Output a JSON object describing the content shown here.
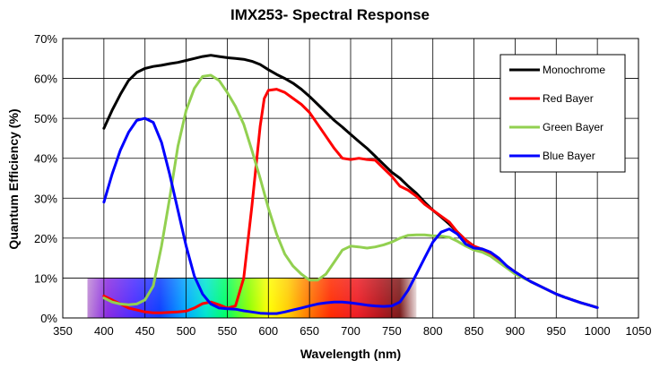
{
  "chart_data": {
    "type": "line",
    "title": "IMX253- Spectral Response",
    "xlabel": "Wavelength (nm)",
    "ylabel": "Quantum Efficiency (%)",
    "xlim": [
      350,
      1050
    ],
    "ylim": [
      0,
      70
    ],
    "x_ticks": [
      "350",
      "400",
      "450",
      "500",
      "550",
      "600",
      "650",
      "700",
      "750",
      "800",
      "850",
      "900",
      "950",
      "1000",
      "1050"
    ],
    "y_ticks": [
      "0%",
      "10%",
      "20%",
      "30%",
      "40%",
      "50%",
      "60%",
      "70%"
    ],
    "grid": true,
    "legend_position": "top-right",
    "background_band": {
      "description_kind": "visible spectrum color band",
      "x_range": [
        380,
        780
      ],
      "y_range": [
        0,
        10
      ]
    },
    "series": [
      {
        "name": "Monochrome",
        "color": "#000000",
        "points": [
          [
            400,
            47.5
          ],
          [
            410,
            52
          ],
          [
            420,
            56
          ],
          [
            430,
            59.5
          ],
          [
            440,
            61.5
          ],
          [
            450,
            62.5
          ],
          [
            460,
            63
          ],
          [
            470,
            63.3
          ],
          [
            480,
            63.7
          ],
          [
            490,
            64
          ],
          [
            500,
            64.5
          ],
          [
            510,
            65
          ],
          [
            520,
            65.5
          ],
          [
            530,
            65.8
          ],
          [
            540,
            65.5
          ],
          [
            550,
            65.2
          ],
          [
            560,
            65
          ],
          [
            570,
            64.8
          ],
          [
            580,
            64.3
          ],
          [
            590,
            63.5
          ],
          [
            600,
            62.2
          ],
          [
            610,
            61
          ],
          [
            620,
            60
          ],
          [
            630,
            58.8
          ],
          [
            640,
            57.3
          ],
          [
            650,
            55.5
          ],
          [
            660,
            53.5
          ],
          [
            670,
            51.5
          ],
          [
            680,
            49.5
          ],
          [
            690,
            47.8
          ],
          [
            700,
            46
          ],
          [
            710,
            44.2
          ],
          [
            720,
            42.5
          ],
          [
            730,
            40.5
          ],
          [
            740,
            38.5
          ],
          [
            750,
            36.5
          ],
          [
            760,
            35
          ],
          [
            770,
            33
          ],
          [
            780,
            31.2
          ],
          [
            790,
            29
          ],
          [
            800,
            27
          ],
          [
            810,
            25.3
          ],
          [
            820,
            23.5
          ],
          [
            830,
            21.5
          ],
          [
            840,
            19.5
          ],
          [
            850,
            18
          ],
          [
            860,
            17
          ],
          [
            870,
            16
          ],
          [
            880,
            14.5
          ],
          [
            890,
            13
          ],
          [
            900,
            11.5
          ],
          [
            910,
            10.2
          ],
          [
            920,
            9
          ],
          [
            930,
            8
          ],
          [
            940,
            7
          ],
          [
            950,
            6
          ],
          [
            960,
            5.2
          ],
          [
            970,
            4.5
          ],
          [
            980,
            3.8
          ],
          [
            990,
            3.2
          ],
          [
            1000,
            2.6
          ]
        ]
      },
      {
        "name": "Red Bayer",
        "color": "#ff0000",
        "points": [
          [
            400,
            5.5
          ],
          [
            410,
            4.5
          ],
          [
            420,
            3.5
          ],
          [
            430,
            2.5
          ],
          [
            440,
            2
          ],
          [
            450,
            1.5
          ],
          [
            460,
            1.3
          ],
          [
            470,
            1.3
          ],
          [
            480,
            1.4
          ],
          [
            490,
            1.5
          ],
          [
            500,
            1.7
          ],
          [
            510,
            2.5
          ],
          [
            520,
            3.6
          ],
          [
            530,
            4
          ],
          [
            540,
            3.3
          ],
          [
            550,
            2.5
          ],
          [
            560,
            3
          ],
          [
            570,
            10
          ],
          [
            580,
            28
          ],
          [
            590,
            48
          ],
          [
            595,
            55
          ],
          [
            600,
            57
          ],
          [
            610,
            57.3
          ],
          [
            620,
            56.5
          ],
          [
            630,
            55
          ],
          [
            640,
            53.5
          ],
          [
            650,
            51.5
          ],
          [
            660,
            48.5
          ],
          [
            670,
            45.5
          ],
          [
            680,
            42.5
          ],
          [
            690,
            40
          ],
          [
            700,
            39.7
          ],
          [
            710,
            40
          ],
          [
            720,
            39.7
          ],
          [
            730,
            39.5
          ],
          [
            740,
            37.5
          ],
          [
            750,
            35.5
          ],
          [
            760,
            33
          ],
          [
            770,
            32
          ],
          [
            780,
            30.5
          ],
          [
            790,
            28.5
          ],
          [
            800,
            27
          ],
          [
            810,
            25.5
          ],
          [
            820,
            24
          ],
          [
            830,
            21.5
          ],
          [
            840,
            19.5
          ],
          [
            850,
            18
          ],
          [
            860,
            17.2
          ],
          [
            870,
            16
          ],
          [
            880,
            14.5
          ],
          [
            890,
            13
          ],
          [
            900,
            11.5
          ],
          [
            910,
            10.2
          ],
          [
            920,
            9
          ],
          [
            930,
            8
          ],
          [
            940,
            7
          ],
          [
            950,
            6
          ],
          [
            960,
            5.2
          ],
          [
            970,
            4.5
          ],
          [
            980,
            3.8
          ],
          [
            990,
            3.2
          ],
          [
            1000,
            2.6
          ]
        ]
      },
      {
        "name": "Green Bayer",
        "color": "#92d050",
        "points": [
          [
            400,
            5
          ],
          [
            410,
            4
          ],
          [
            420,
            3.5
          ],
          [
            430,
            3.3
          ],
          [
            440,
            3.5
          ],
          [
            450,
            4.5
          ],
          [
            460,
            8
          ],
          [
            470,
            18
          ],
          [
            480,
            30
          ],
          [
            490,
            43
          ],
          [
            500,
            52
          ],
          [
            510,
            57.5
          ],
          [
            520,
            60.5
          ],
          [
            530,
            60.8
          ],
          [
            540,
            59.5
          ],
          [
            550,
            56.5
          ],
          [
            560,
            53
          ],
          [
            570,
            48.5
          ],
          [
            580,
            42
          ],
          [
            590,
            35
          ],
          [
            600,
            27.5
          ],
          [
            610,
            21
          ],
          [
            620,
            16
          ],
          [
            630,
            13
          ],
          [
            640,
            11
          ],
          [
            650,
            9.5
          ],
          [
            660,
            9.5
          ],
          [
            670,
            11
          ],
          [
            680,
            14
          ],
          [
            690,
            17
          ],
          [
            700,
            18
          ],
          [
            710,
            17.8
          ],
          [
            720,
            17.5
          ],
          [
            730,
            17.8
          ],
          [
            740,
            18.3
          ],
          [
            750,
            19
          ],
          [
            760,
            20
          ],
          [
            770,
            20.7
          ],
          [
            780,
            20.8
          ],
          [
            790,
            20.8
          ],
          [
            800,
            20.6
          ],
          [
            810,
            20.5
          ],
          [
            820,
            20.2
          ],
          [
            830,
            19.2
          ],
          [
            840,
            18
          ],
          [
            850,
            17
          ],
          [
            860,
            16.5
          ],
          [
            870,
            15.5
          ],
          [
            880,
            14
          ],
          [
            890,
            12.5
          ],
          [
            900,
            11
          ],
          [
            910,
            10
          ],
          [
            920,
            9
          ],
          [
            930,
            8
          ],
          [
            940,
            7
          ],
          [
            950,
            6
          ],
          [
            960,
            5.2
          ],
          [
            970,
            4.5
          ],
          [
            980,
            3.8
          ],
          [
            990,
            3.2
          ],
          [
            1000,
            2.6
          ]
        ]
      },
      {
        "name": "Blue Bayer",
        "color": "#0000ff",
        "points": [
          [
            400,
            29
          ],
          [
            410,
            36
          ],
          [
            420,
            42
          ],
          [
            430,
            46.5
          ],
          [
            440,
            49.5
          ],
          [
            450,
            50
          ],
          [
            460,
            49
          ],
          [
            470,
            44
          ],
          [
            480,
            36
          ],
          [
            490,
            27
          ],
          [
            500,
            18
          ],
          [
            510,
            10.5
          ],
          [
            520,
            6
          ],
          [
            530,
            3.5
          ],
          [
            540,
            2.5
          ],
          [
            550,
            2.3
          ],
          [
            560,
            2.2
          ],
          [
            570,
            1.8
          ],
          [
            580,
            1.5
          ],
          [
            590,
            1.2
          ],
          [
            600,
            1.1
          ],
          [
            610,
            1.1
          ],
          [
            620,
            1.5
          ],
          [
            630,
            2
          ],
          [
            640,
            2.5
          ],
          [
            650,
            3
          ],
          [
            660,
            3.5
          ],
          [
            670,
            3.8
          ],
          [
            680,
            4
          ],
          [
            690,
            4
          ],
          [
            700,
            3.8
          ],
          [
            710,
            3.5
          ],
          [
            720,
            3.2
          ],
          [
            730,
            3
          ],
          [
            740,
            2.9
          ],
          [
            750,
            3
          ],
          [
            760,
            4
          ],
          [
            770,
            7
          ],
          [
            780,
            11
          ],
          [
            790,
            15
          ],
          [
            800,
            19
          ],
          [
            810,
            21.5
          ],
          [
            820,
            22.3
          ],
          [
            830,
            21
          ],
          [
            840,
            18.5
          ],
          [
            850,
            17.5
          ],
          [
            860,
            17.3
          ],
          [
            870,
            16.5
          ],
          [
            880,
            15
          ],
          [
            890,
            13
          ],
          [
            900,
            11.5
          ],
          [
            910,
            10.2
          ],
          [
            920,
            9
          ],
          [
            930,
            8
          ],
          [
            940,
            7
          ],
          [
            950,
            6
          ],
          [
            960,
            5.2
          ],
          [
            970,
            4.5
          ],
          [
            980,
            3.8
          ],
          [
            990,
            3.2
          ],
          [
            1000,
            2.6
          ]
        ]
      }
    ]
  }
}
